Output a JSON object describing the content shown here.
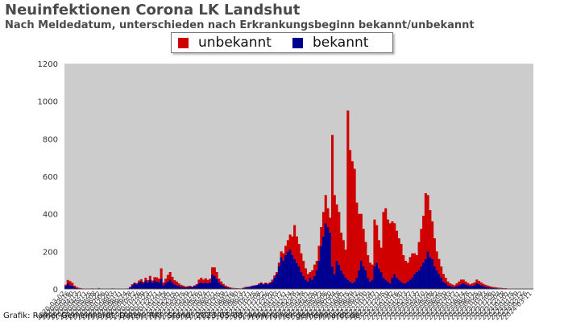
{
  "header": {
    "title": "Neuinfektionen Corona LK Landshut",
    "subtitle": "Nach Meldedatum, unterschieden nach Erkrankungsbeginn bekannt/unbekannt"
  },
  "footer": {
    "credit": "Grafik: Rainer Gemeinhardt, Daten: RKI, Stand: 2023-05-08, www.rainer-gemeinhardt.de"
  },
  "colors": {
    "unbekannt": "#d00000",
    "bekannt": "#000090",
    "plot_bg": "#cccccc"
  },
  "chart_data": {
    "type": "bar",
    "stacked": true,
    "title": "Neuinfektionen Corona LK Landshut",
    "subtitle": "Nach Meldedatum, unterschieden nach Erkrankungsbeginn bekannt/unbekannt",
    "xlabel": "",
    "ylabel": "",
    "ylim": [
      0,
      1200
    ],
    "yticks": [
      0,
      200,
      400,
      600,
      800,
      1000,
      1200
    ],
    "grid": false,
    "legend_position": "top-center",
    "x_start": "2020-03-02",
    "x_interval": "weekly",
    "series": [
      {
        "name": "unbekannt",
        "color": "#d00000",
        "values": [
          8,
          18,
          22,
          15,
          8,
          5,
          3,
          2,
          1,
          0,
          0,
          0,
          1,
          0,
          0,
          2,
          0,
          0,
          0,
          0,
          0,
          1,
          0,
          0,
          0,
          0,
          0,
          0,
          1,
          3,
          5,
          4,
          6,
          10,
          12,
          8,
          15,
          12,
          20,
          10,
          18,
          22,
          20,
          55,
          15,
          25,
          35,
          40,
          30,
          22,
          20,
          15,
          10,
          8,
          5,
          5,
          5,
          3,
          4,
          6,
          20,
          25,
          20,
          22,
          18,
          20,
          40,
          45,
          35,
          20,
          15,
          12,
          8,
          5,
          4,
          3,
          2,
          2,
          1,
          1,
          2,
          3,
          2,
          2,
          3,
          2,
          2,
          4,
          5,
          3,
          4,
          5,
          6,
          10,
          12,
          10,
          20,
          30,
          40,
          50,
          60,
          80,
          100,
          180,
          140,
          120,
          100,
          80,
          60,
          40,
          30,
          50,
          60,
          50,
          80,
          100,
          130,
          150,
          100,
          80,
          700,
          420,
          300,
          280,
          200,
          180,
          150,
          900,
          700,
          650,
          600,
          400,
          300,
          250,
          200,
          150,
          120,
          100,
          80,
          250,
          200,
          150,
          130,
          350,
          380,
          330,
          320,
          300,
          270,
          250,
          220,
          200,
          150,
          120,
          100,
          120,
          130,
          110,
          90,
          150,
          200,
          250,
          350,
          300,
          250,
          200,
          150,
          100,
          80,
          60,
          40,
          30,
          20,
          15,
          12,
          10,
          15,
          20,
          25,
          20,
          15,
          12,
          10,
          12,
          15,
          20,
          18,
          15,
          12,
          10,
          8,
          6,
          5,
          5,
          4,
          3,
          3,
          2,
          2,
          1,
          1,
          1,
          1,
          1,
          1,
          0,
          0,
          0,
          0,
          0,
          0
        ]
      },
      {
        "name": "bekannt",
        "color": "#000090",
        "values": [
          15,
          30,
          20,
          18,
          10,
          5,
          3,
          2,
          1,
          0,
          0,
          0,
          2,
          0,
          0,
          3,
          0,
          0,
          0,
          0,
          0,
          2,
          0,
          0,
          0,
          0,
          0,
          0,
          2,
          8,
          20,
          30,
          25,
          35,
          40,
          30,
          45,
          35,
          50,
          35,
          45,
          40,
          35,
          55,
          20,
          30,
          40,
          50,
          35,
          25,
          20,
          15,
          12,
          10,
          8,
          10,
          12,
          10,
          15,
          20,
          30,
          35,
          30,
          35,
          30,
          35,
          75,
          70,
          55,
          35,
          25,
          15,
          10,
          8,
          5,
          3,
          3,
          2,
          2,
          2,
          5,
          8,
          10,
          12,
          15,
          18,
          20,
          25,
          30,
          25,
          30,
          25,
          30,
          40,
          60,
          80,
          120,
          170,
          150,
          180,
          200,
          210,
          180,
          160,
          140,
          120,
          90,
          70,
          50,
          40,
          60,
          50,
          70,
          100,
          150,
          230,
          280,
          350,
          330,
          300,
          120,
          80,
          150,
          130,
          100,
          80,
          60,
          50,
          40,
          30,
          40,
          60,
          100,
          150,
          120,
          100,
          60,
          40,
          50,
          120,
          140,
          110,
          90,
          60,
          50,
          40,
          30,
          60,
          80,
          60,
          50,
          40,
          30,
          30,
          40,
          50,
          60,
          80,
          90,
          100,
          120,
          140,
          160,
          200,
          170,
          160,
          120,
          100,
          80,
          60,
          40,
          30,
          20,
          15,
          12,
          10,
          15,
          20,
          25,
          30,
          25,
          20,
          15,
          18,
          20,
          30,
          25,
          20,
          15,
          12,
          10,
          8,
          6,
          5,
          4,
          3,
          3,
          2,
          2,
          1,
          1,
          1,
          1,
          1,
          1,
          0,
          0,
          0,
          0,
          0,
          0
        ]
      }
    ]
  }
}
